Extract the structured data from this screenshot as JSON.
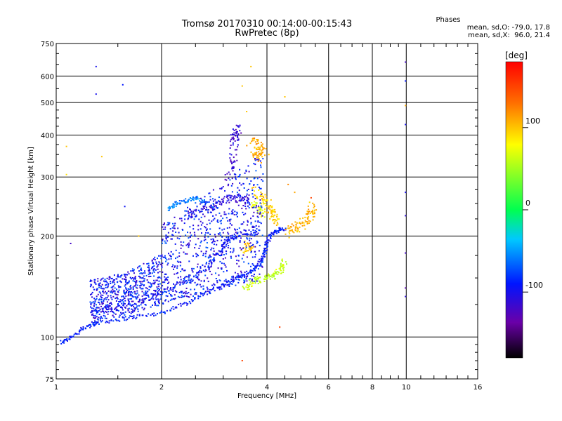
{
  "header": {
    "title": "Tromsø 20170310 00:14:00-00:15:43",
    "subtitle": "RwPretec (8p)",
    "stats_title": "Phases",
    "stats_o": "mean, sd,O: -79.0, 17.8",
    "stats_x": "mean, sd,X:  96.0, 21.4"
  },
  "colorbar": {
    "label": "[deg]",
    "range": [
      -180,
      180
    ],
    "ticks": [
      {
        "value": 100,
        "label": "100"
      },
      {
        "value": 0,
        "label": "0"
      },
      {
        "value": -100,
        "label": "-100"
      }
    ]
  },
  "chart_data": {
    "type": "scatter",
    "title": "Tromsø 20170310 00:14:00-00:15:43",
    "subtitle": "RwPretec (8p)",
    "xlabel": "Frequency [MHz]",
    "ylabel": "Stationary phase Virtual Height [km]",
    "x_scale": "log",
    "y_scale": "log",
    "xlim": [
      1,
      16
    ],
    "ylim": [
      75,
      750
    ],
    "grid": true,
    "x_ticks": [
      {
        "value": 1,
        "label": "1"
      },
      {
        "value": 2,
        "label": "2"
      },
      {
        "value": 4,
        "label": "4"
      },
      {
        "value": 6,
        "label": "6"
      },
      {
        "value": 8,
        "label": "8"
      },
      {
        "value": 10,
        "label": "10"
      },
      {
        "value": 16,
        "label": "16"
      }
    ],
    "y_ticks": [
      {
        "value": 75,
        "label": "75"
      },
      {
        "value": 100,
        "label": "100"
      },
      {
        "value": 200,
        "label": "200"
      },
      {
        "value": 300,
        "label": "300"
      },
      {
        "value": 400,
        "label": "400"
      },
      {
        "value": 500,
        "label": "500"
      },
      {
        "value": 600,
        "label": "600"
      },
      {
        "value": 750,
        "label": "750"
      }
    ],
    "traces": [
      {
        "phase": -90,
        "spread": 0.012,
        "points": [
          [
            1.03,
            96
          ],
          [
            1.1,
            100
          ],
          [
            1.2,
            106
          ],
          [
            1.3,
            110
          ],
          [
            1.5,
            113
          ],
          [
            1.7,
            115
          ],
          [
            2.0,
            118
          ],
          [
            2.3,
            125
          ],
          [
            2.6,
            133
          ],
          [
            2.9,
            140
          ],
          [
            3.1,
            145
          ],
          [
            3.3,
            150
          ],
          [
            3.5,
            154
          ],
          [
            3.7,
            160
          ],
          [
            3.85,
            168
          ],
          [
            3.95,
            178
          ],
          [
            4.0,
            190
          ],
          [
            4.1,
            202
          ],
          [
            4.3,
            208
          ],
          [
            4.5,
            210
          ]
        ]
      },
      {
        "phase": -95,
        "spread": 0.015,
        "points": [
          [
            1.25,
            120
          ],
          [
            1.5,
            122
          ],
          [
            1.8,
            128
          ],
          [
            2.1,
            140
          ],
          [
            2.4,
            150
          ],
          [
            2.7,
            162
          ],
          [
            2.9,
            175
          ],
          [
            3.0,
            185
          ],
          [
            3.1,
            195
          ],
          [
            3.25,
            200
          ],
          [
            3.5,
            205
          ],
          [
            3.8,
            205
          ]
        ]
      },
      {
        "phase": -110,
        "spread": 0.02,
        "points": [
          [
            2.4,
            230
          ],
          [
            2.6,
            238
          ],
          [
            2.8,
            245
          ],
          [
            3.0,
            255
          ],
          [
            3.2,
            262
          ],
          [
            3.4,
            260
          ],
          [
            3.6,
            250
          ]
        ]
      },
      {
        "phase": -115,
        "spread": 0.03,
        "points": [
          [
            3.1,
            300
          ],
          [
            3.2,
            340
          ],
          [
            3.25,
            390
          ],
          [
            3.3,
            420
          ],
          [
            3.2,
            380
          ]
        ]
      },
      {
        "phase": -60,
        "spread": 0.01,
        "points": [
          [
            2.1,
            240
          ],
          [
            2.2,
            250
          ],
          [
            2.35,
            255
          ],
          [
            2.5,
            260
          ],
          [
            2.7,
            250
          ]
        ]
      },
      {
        "phase": 60,
        "spread": 0.02,
        "points": [
          [
            3.45,
            140
          ],
          [
            3.6,
            145
          ],
          [
            3.8,
            148
          ],
          [
            4.0,
            150
          ],
          [
            4.2,
            152
          ],
          [
            4.4,
            160
          ],
          [
            4.5,
            168
          ]
        ]
      },
      {
        "phase": 110,
        "spread": 0.03,
        "points": [
          [
            3.6,
            380
          ],
          [
            3.75,
            370
          ],
          [
            3.9,
            360
          ],
          [
            3.7,
            350
          ],
          [
            3.8,
            340
          ]
        ]
      },
      {
        "phase": 95,
        "spread": 0.03,
        "points": [
          [
            3.7,
            275
          ],
          [
            3.85,
            260
          ],
          [
            4.0,
            250
          ],
          [
            4.1,
            240
          ],
          [
            4.2,
            230
          ],
          [
            4.3,
            222
          ]
        ]
      },
      {
        "phase": 105,
        "spread": 0.03,
        "points": [
          [
            4.6,
            205
          ],
          [
            4.8,
            210
          ],
          [
            5.0,
            215
          ],
          [
            5.2,
            225
          ],
          [
            5.4,
            235
          ],
          [
            5.3,
            245
          ]
        ]
      },
      {
        "phase": 100,
        "spread": 0.02,
        "points": [
          [
            3.4,
            180
          ],
          [
            3.6,
            185
          ],
          [
            3.5,
            190
          ]
        ]
      },
      {
        "phase": 70,
        "spread": 0.02,
        "points": [
          [
            3.6,
            250
          ],
          [
            3.8,
            240
          ],
          [
            3.9,
            230
          ]
        ]
      }
    ],
    "isolated_points": [
      {
        "x": 1.3,
        "y": 640,
        "phase": -100
      },
      {
        "x": 1.3,
        "y": 530,
        "phase": -100
      },
      {
        "x": 1.55,
        "y": 565,
        "phase": -90
      },
      {
        "x": 1.57,
        "y": 245,
        "phase": -95
      },
      {
        "x": 1.07,
        "y": 370,
        "phase": 100
      },
      {
        "x": 1.07,
        "y": 305,
        "phase": 90
      },
      {
        "x": 1.1,
        "y": 190,
        "phase": -120
      },
      {
        "x": 1.35,
        "y": 345,
        "phase": 100
      },
      {
        "x": 1.72,
        "y": 200,
        "phase": 100
      },
      {
        "x": 3.6,
        "y": 640,
        "phase": 100
      },
      {
        "x": 3.4,
        "y": 560,
        "phase": 100
      },
      {
        "x": 4.5,
        "y": 520,
        "phase": 100
      },
      {
        "x": 3.5,
        "y": 470,
        "phase": 100
      },
      {
        "x": 4.05,
        "y": 350,
        "phase": 100
      },
      {
        "x": 3.4,
        "y": 85,
        "phase": 150
      },
      {
        "x": 4.35,
        "y": 107,
        "phase": 150
      },
      {
        "x": 9.95,
        "y": 660,
        "phase": -120
      },
      {
        "x": 9.95,
        "y": 580,
        "phase": -90
      },
      {
        "x": 9.95,
        "y": 490,
        "phase": 110
      },
      {
        "x": 9.95,
        "y": 430,
        "phase": -100
      },
      {
        "x": 9.95,
        "y": 270,
        "phase": -100
      },
      {
        "x": 9.95,
        "y": 230,
        "phase": -110
      },
      {
        "x": 9.95,
        "y": 178,
        "phase": -120
      },
      {
        "x": 9.95,
        "y": 140,
        "phase": -130
      },
      {
        "x": 9.95,
        "y": 132,
        "phase": -110
      },
      {
        "x": 5.35,
        "y": 260,
        "phase": 150
      },
      {
        "x": 4.6,
        "y": 285,
        "phase": 120
      },
      {
        "x": 4.8,
        "y": 270,
        "phase": 110
      }
    ]
  }
}
